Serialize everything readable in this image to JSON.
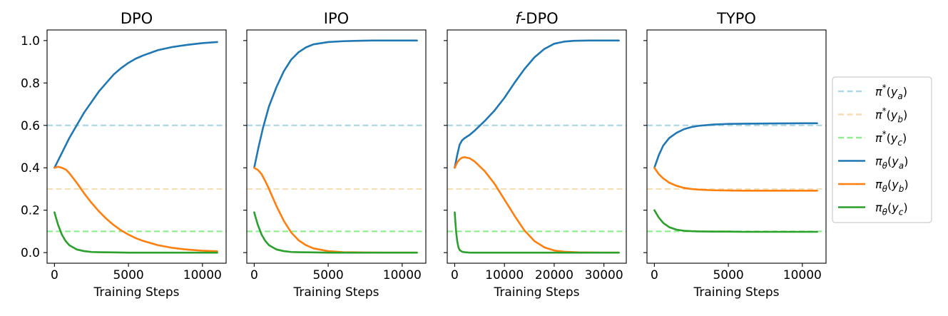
{
  "chart_data": [
    {
      "type": "line",
      "title": "DPO",
      "xlabel": "Training Steps",
      "ylabel": "",
      "xlim": [
        -500,
        11600
      ],
      "ylim": [
        -0.05,
        1.05
      ],
      "xticks": [
        0,
        5000,
        10000
      ],
      "xtick_labels": [
        "0",
        "5000",
        "10000"
      ],
      "yticks": [
        0.0,
        0.2,
        0.4,
        0.6,
        0.8,
        1.0
      ],
      "ytick_labels": [
        "0.0",
        "0.2",
        "0.4",
        "0.6",
        "0.8",
        "1.0"
      ],
      "show_yticklabels": true,
      "grid": false,
      "hlines": [
        {
          "name": "π*(y_a)",
          "y": 0.6,
          "color": "#add8e6",
          "style": "dashed"
        },
        {
          "name": "π*(y_b)",
          "y": 0.3,
          "color": "#f5deb3",
          "style": "dashed"
        },
        {
          "name": "π*(y_c)",
          "y": 0.1,
          "color": "#90ee90",
          "style": "dashed"
        }
      ],
      "series": [
        {
          "name": "π_θ(y_a)",
          "color": "#1f77b4",
          "x": [
            0,
            500,
            1000,
            1500,
            2000,
            2500,
            3000,
            3500,
            4000,
            4500,
            5000,
            5500,
            6000,
            7000,
            8000,
            9000,
            10000,
            11000
          ],
          "y": [
            0.4,
            0.47,
            0.54,
            0.6,
            0.66,
            0.71,
            0.76,
            0.8,
            0.84,
            0.87,
            0.895,
            0.915,
            0.93,
            0.955,
            0.97,
            0.98,
            0.988,
            0.993
          ]
        },
        {
          "name": "π_θ(y_b)",
          "color": "#ff7f0e",
          "x": [
            0,
            250,
            500,
            800,
            1000,
            1500,
            2000,
            2500,
            3000,
            3500,
            4000,
            4500,
            5000,
            5500,
            6000,
            7000,
            8000,
            9000,
            10000,
            11000
          ],
          "y": [
            0.4,
            0.405,
            0.4,
            0.39,
            0.375,
            0.33,
            0.28,
            0.235,
            0.195,
            0.16,
            0.13,
            0.105,
            0.085,
            0.068,
            0.055,
            0.035,
            0.022,
            0.014,
            0.009,
            0.006
          ]
        },
        {
          "name": "π_θ(y_c)",
          "color": "#2ca02c",
          "x": [
            0,
            100,
            250,
            500,
            750,
            1000,
            1500,
            2000,
            2500,
            3000,
            4000,
            5000,
            7000,
            9000,
            11000
          ],
          "y": [
            0.19,
            0.165,
            0.13,
            0.085,
            0.055,
            0.035,
            0.015,
            0.007,
            0.003,
            0.002,
            0.001,
            0.0,
            0.0,
            0.0,
            0.0
          ]
        }
      ]
    },
    {
      "type": "line",
      "title": "IPO",
      "xlabel": "Training Steps",
      "ylabel": "",
      "xlim": [
        -500,
        11600
      ],
      "ylim": [
        -0.05,
        1.05
      ],
      "xticks": [
        0,
        5000,
        10000
      ],
      "xtick_labels": [
        "0",
        "5000",
        "10000"
      ],
      "yticks": [
        0.0,
        0.2,
        0.4,
        0.6,
        0.8,
        1.0
      ],
      "ytick_labels": [],
      "show_yticklabels": false,
      "grid": false,
      "hlines": [
        {
          "name": "π*(y_a)",
          "y": 0.6,
          "color": "#add8e6",
          "style": "dashed"
        },
        {
          "name": "π*(y_b)",
          "y": 0.3,
          "color": "#f5deb3",
          "style": "dashed"
        },
        {
          "name": "π*(y_c)",
          "y": 0.1,
          "color": "#90ee90",
          "style": "dashed"
        }
      ],
      "series": [
        {
          "name": "π_θ(y_a)",
          "color": "#1f77b4",
          "x": [
            0,
            300,
            600,
            1000,
            1500,
            2000,
            2500,
            3000,
            3500,
            4000,
            5000,
            6000,
            7000,
            8000,
            9000,
            10000,
            11000
          ],
          "y": [
            0.4,
            0.5,
            0.59,
            0.69,
            0.78,
            0.855,
            0.91,
            0.945,
            0.968,
            0.982,
            0.993,
            0.997,
            0.999,
            1.0,
            1.0,
            1.0,
            1.0
          ]
        },
        {
          "name": "π_θ(y_b)",
          "color": "#ff7f0e",
          "x": [
            0,
            250,
            500,
            800,
            1000,
            1500,
            2000,
            2500,
            3000,
            3500,
            4000,
            5000,
            6000,
            7000,
            9000,
            11000
          ],
          "y": [
            0.4,
            0.39,
            0.37,
            0.33,
            0.3,
            0.22,
            0.15,
            0.095,
            0.058,
            0.035,
            0.02,
            0.007,
            0.002,
            0.001,
            0.0,
            0.0
          ]
        },
        {
          "name": "π_θ(y_c)",
          "color": "#2ca02c",
          "x": [
            0,
            100,
            250,
            500,
            750,
            1000,
            1500,
            2000,
            2500,
            3000,
            4000,
            5000,
            7000,
            9000,
            11000
          ],
          "y": [
            0.19,
            0.165,
            0.13,
            0.085,
            0.055,
            0.035,
            0.015,
            0.007,
            0.003,
            0.002,
            0.001,
            0.0,
            0.0,
            0.0,
            0.0
          ]
        }
      ]
    },
    {
      "type": "line",
      "title": "f-DPO",
      "xlabel": "Training Steps",
      "ylabel": "",
      "xlim": [
        -1500,
        34500
      ],
      "ylim": [
        -0.05,
        1.05
      ],
      "xticks": [
        0,
        10000,
        20000,
        30000
      ],
      "xtick_labels": [
        "0",
        "10000",
        "20000",
        "30000"
      ],
      "yticks": [
        0.0,
        0.2,
        0.4,
        0.6,
        0.8,
        1.0
      ],
      "ytick_labels": [],
      "show_yticklabels": false,
      "grid": false,
      "hlines": [
        {
          "name": "π*(y_a)",
          "y": 0.6,
          "color": "#add8e6",
          "style": "dashed"
        },
        {
          "name": "π*(y_b)",
          "y": 0.3,
          "color": "#f5deb3",
          "style": "dashed"
        },
        {
          "name": "π*(y_c)",
          "y": 0.1,
          "color": "#90ee90",
          "style": "dashed"
        }
      ],
      "series": [
        {
          "name": "π_θ(y_a)",
          "color": "#1f77b4",
          "x": [
            0,
            500,
            1000,
            1500,
            2000,
            3000,
            4000,
            6000,
            8000,
            10000,
            12000,
            14000,
            16000,
            18000,
            20000,
            22000,
            24000,
            27000,
            30000,
            33000
          ],
          "y": [
            0.4,
            0.46,
            0.51,
            0.53,
            0.54,
            0.555,
            0.575,
            0.62,
            0.67,
            0.73,
            0.8,
            0.865,
            0.92,
            0.96,
            0.985,
            0.995,
            0.999,
            1.0,
            1.0,
            1.0
          ]
        },
        {
          "name": "π_θ(y_b)",
          "color": "#ff7f0e",
          "x": [
            0,
            500,
            1000,
            1500,
            2000,
            3000,
            4000,
            6000,
            8000,
            10000,
            12000,
            14000,
            16000,
            18000,
            20000,
            22000,
            25000,
            30000,
            33000
          ],
          "y": [
            0.4,
            0.425,
            0.44,
            0.448,
            0.45,
            0.445,
            0.43,
            0.385,
            0.325,
            0.25,
            0.175,
            0.105,
            0.055,
            0.025,
            0.01,
            0.004,
            0.001,
            0.0,
            0.0
          ]
        },
        {
          "name": "π_θ(y_c)",
          "color": "#2ca02c",
          "x": [
            0,
            150,
            300,
            500,
            750,
            1000,
            1500,
            2000,
            3000,
            5000,
            10000,
            20000,
            33000
          ],
          "y": [
            0.19,
            0.14,
            0.095,
            0.055,
            0.025,
            0.012,
            0.004,
            0.002,
            0.0,
            0.0,
            0.0,
            0.0,
            0.0
          ]
        }
      ]
    },
    {
      "type": "line",
      "title": "TYPO",
      "xlabel": "Training Steps",
      "ylabel": "",
      "xlim": [
        -500,
        11600
      ],
      "ylim": [
        -0.05,
        1.05
      ],
      "xticks": [
        0,
        5000,
        10000
      ],
      "xtick_labels": [
        "0",
        "5000",
        "10000"
      ],
      "yticks": [
        0.0,
        0.2,
        0.4,
        0.6,
        0.8,
        1.0
      ],
      "ytick_labels": [],
      "show_yticklabels": false,
      "grid": false,
      "hlines": [
        {
          "name": "π*(y_a)",
          "y": 0.6,
          "color": "#add8e6",
          "style": "dashed"
        },
        {
          "name": "π*(y_b)",
          "y": 0.3,
          "color": "#f5deb3",
          "style": "dashed"
        },
        {
          "name": "π*(y_c)",
          "y": 0.1,
          "color": "#90ee90",
          "style": "dashed"
        }
      ],
      "series": [
        {
          "name": "π_θ(y_a)",
          "color": "#1f77b4",
          "x": [
            0,
            300,
            600,
            1000,
            1500,
            2000,
            2500,
            3000,
            4000,
            5000,
            6000,
            8000,
            10000,
            11000
          ],
          "y": [
            0.4,
            0.46,
            0.505,
            0.54,
            0.565,
            0.582,
            0.592,
            0.598,
            0.604,
            0.607,
            0.608,
            0.609,
            0.61,
            0.61
          ]
        },
        {
          "name": "π_θ(y_b)",
          "color": "#ff7f0e",
          "x": [
            0,
            300,
            600,
            1000,
            1500,
            2000,
            2500,
            3000,
            4000,
            5000,
            6000,
            8000,
            10000,
            11000
          ],
          "y": [
            0.4,
            0.37,
            0.35,
            0.33,
            0.315,
            0.305,
            0.3,
            0.297,
            0.294,
            0.293,
            0.292,
            0.292,
            0.292,
            0.292
          ]
        },
        {
          "name": "π_θ(y_c)",
          "color": "#2ca02c",
          "x": [
            0,
            300,
            600,
            1000,
            1500,
            2000,
            2500,
            3000,
            4000,
            5000,
            6000,
            8000,
            10000,
            11000
          ],
          "y": [
            0.2,
            0.165,
            0.14,
            0.12,
            0.108,
            0.103,
            0.101,
            0.1,
            0.099,
            0.099,
            0.098,
            0.098,
            0.098,
            0.098
          ]
        }
      ]
    }
  ],
  "legend": {
    "placement": "right",
    "entries": [
      {
        "base": "π",
        "sup": "*",
        "arg": "y",
        "sub": "a",
        "color": "#add8e6",
        "style": "dashed"
      },
      {
        "base": "π",
        "sup": "*",
        "arg": "y",
        "sub": "b",
        "color": "#f5deb3",
        "style": "dashed"
      },
      {
        "base": "π",
        "sup": "*",
        "arg": "y",
        "sub": "c",
        "color": "#90ee90",
        "style": "dashed"
      },
      {
        "base": "π",
        "basesub": "θ",
        "arg": "y",
        "sub": "a",
        "color": "#1f77b4",
        "style": "solid"
      },
      {
        "base": "π",
        "basesub": "θ",
        "arg": "y",
        "sub": "b",
        "color": "#ff7f0e",
        "style": "solid"
      },
      {
        "base": "π",
        "basesub": "θ",
        "arg": "y",
        "sub": "c",
        "color": "#2ca02c",
        "style": "solid"
      }
    ]
  }
}
